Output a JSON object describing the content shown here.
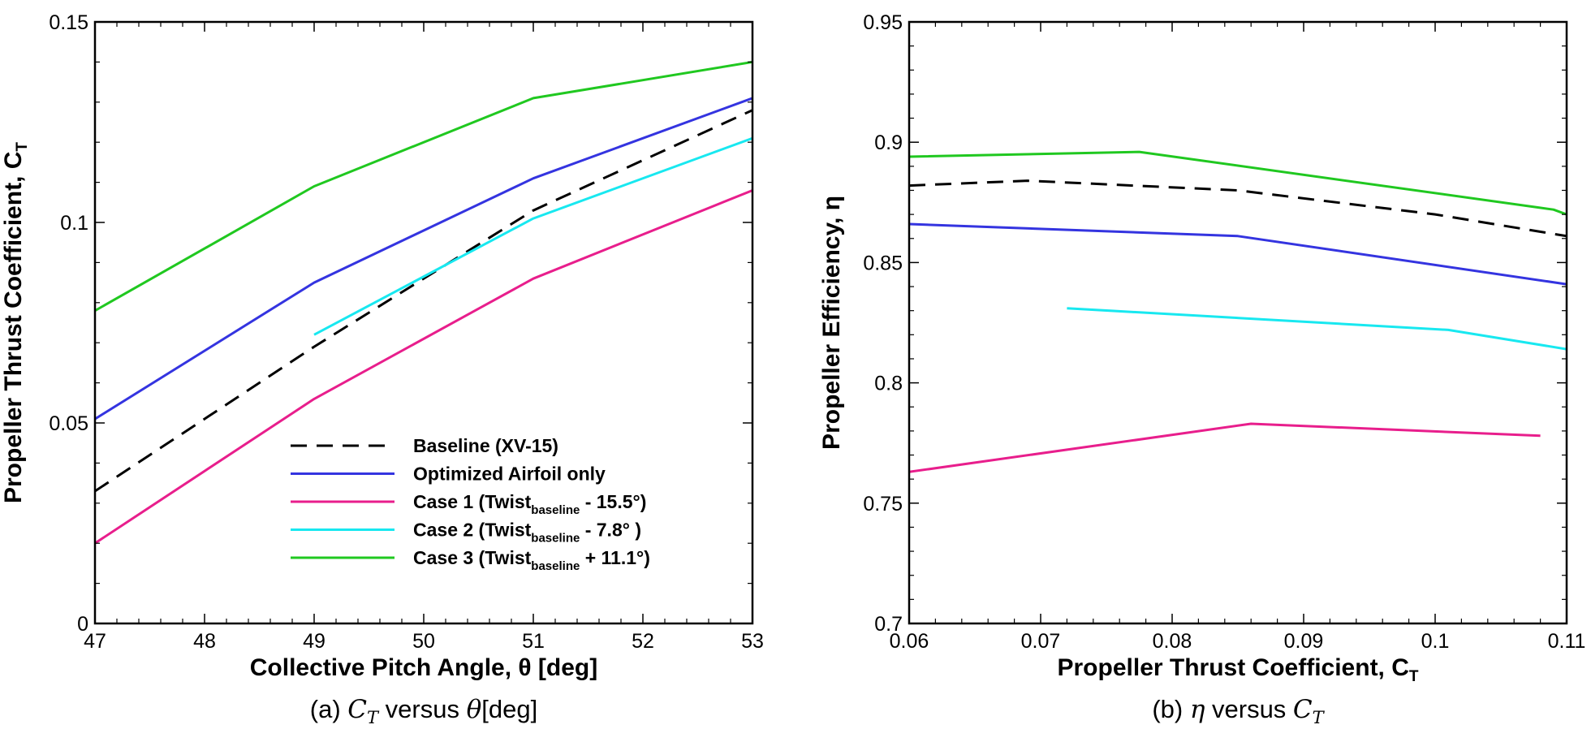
{
  "chart_data": [
    {
      "type": "line",
      "xlabel": "Collective Pitch Angle, θ [deg]",
      "ylabel": "Propeller Thrust Coefficient, C",
      "ylabel_sub": "T",
      "caption": {
        "prefix": "(a) ",
        "math1": "C",
        "math1_sub": "T",
        "middle": " versus ",
        "math2": "θ",
        "suffix": "[deg]"
      },
      "xlim": [
        47,
        53
      ],
      "ylim": [
        0,
        0.15
      ],
      "x_ticks": [
        47,
        48,
        49,
        50,
        51,
        52,
        53
      ],
      "y_ticks": [
        0,
        0.05,
        0.1,
        0.15
      ],
      "x_tick_labels": [
        "47",
        "48",
        "49",
        "50",
        "51",
        "52",
        "53"
      ],
      "y_tick_labels": [
        "0",
        "0.05",
        "0.1",
        "0.15"
      ],
      "grid": false,
      "legend_position": "bottom-center",
      "series": [
        {
          "name": "Baseline (XV-15)",
          "color": "#000000",
          "dash": true,
          "x": [
            47,
            49,
            51,
            53
          ],
          "y": [
            0.033,
            0.069,
            0.103,
            0.128
          ]
        },
        {
          "name": "Optimized Airfoil only",
          "color": "#3434e0",
          "dash": false,
          "x": [
            47,
            49,
            51,
            53
          ],
          "y": [
            0.051,
            0.085,
            0.111,
            0.131
          ]
        },
        {
          "name": "Case 1 (Twist",
          "name_sub": "baseline",
          "name_tail": " - 15.5°)",
          "color": "#e81e8c",
          "dash": false,
          "x": [
            47,
            49,
            51,
            53
          ],
          "y": [
            0.02,
            0.056,
            0.086,
            0.108
          ]
        },
        {
          "name": "Case 2 (Twist",
          "name_sub": "baseline",
          "name_tail": " - 7.8°   )",
          "color": "#18e8f0",
          "dash": false,
          "x": [
            49,
            51,
            53
          ],
          "y": [
            0.072,
            0.101,
            0.121
          ]
        },
        {
          "name": "Case 3 (Twist",
          "name_sub": "baseline",
          "name_tail": " + 11.1°)",
          "color": "#20c820",
          "dash": false,
          "x": [
            47,
            49,
            51,
            53
          ],
          "y": [
            0.078,
            0.109,
            0.131,
            0.14
          ]
        }
      ]
    },
    {
      "type": "line",
      "xlabel": "Propeller Thrust Coefficient, C",
      "xlabel_sub": "T",
      "ylabel": "Propeller Efficiency, η",
      "caption": {
        "prefix": "(b) ",
        "math1": "η",
        "middle": " versus ",
        "math2": "C",
        "math2_sub": "T"
      },
      "xlim": [
        0.06,
        0.11
      ],
      "ylim": [
        0.7,
        0.95
      ],
      "x_ticks": [
        0.06,
        0.07,
        0.08,
        0.09,
        0.1,
        0.11
      ],
      "y_ticks": [
        0.7,
        0.75,
        0.8,
        0.85,
        0.9,
        0.95
      ],
      "x_tick_labels": [
        "0.06",
        "0.07",
        "0.08",
        "0.09",
        "0.1",
        "0.11"
      ],
      "y_tick_labels": [
        "0.7",
        "0.75",
        "0.8",
        "0.85",
        "0.9",
        "0.95"
      ],
      "grid": false,
      "series": [
        {
          "color": "#000000",
          "dash": true,
          "x": [
            0.06,
            0.069,
            0.085,
            0.1,
            0.11
          ],
          "y": [
            0.882,
            0.884,
            0.88,
            0.87,
            0.861
          ]
        },
        {
          "color": "#3434e0",
          "dash": false,
          "x": [
            0.06,
            0.085,
            0.11
          ],
          "y": [
            0.866,
            0.861,
            0.841
          ]
        },
        {
          "color": "#e81e8c",
          "dash": false,
          "x": [
            0.06,
            0.086,
            0.108
          ],
          "y": [
            0.763,
            0.783,
            0.778
          ]
        },
        {
          "color": "#18e8f0",
          "dash": false,
          "x": [
            0.072,
            0.101,
            0.11
          ],
          "y": [
            0.831,
            0.822,
            0.814
          ]
        },
        {
          "color": "#20c820",
          "dash": false,
          "x": [
            0.06,
            0.0775,
            0.109,
            0.11
          ],
          "y": [
            0.894,
            0.896,
            0.872,
            0.87
          ]
        }
      ]
    }
  ]
}
